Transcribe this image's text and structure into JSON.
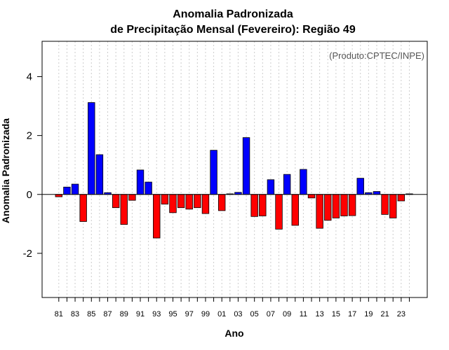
{
  "chart_data": {
    "type": "bar",
    "title_line1": "Anomalia Padronizada",
    "title_line2": "de Precipitação Mensal (Fevereiro): Região 49",
    "xlabel": "Ano",
    "ylabel": "Anomalia Padronizada",
    "credit": "(Produto:CPTEC/INPE)",
    "ylim": [
      -3.5,
      5.2
    ],
    "yticks": [
      -2,
      0,
      2,
      4
    ],
    "categories": [
      "81",
      "82",
      "83",
      "84",
      "85",
      "86",
      "87",
      "88",
      "89",
      "90",
      "91",
      "92",
      "93",
      "94",
      "95",
      "96",
      "97",
      "98",
      "99",
      "00",
      "01",
      "02",
      "03",
      "04",
      "05",
      "06",
      "07",
      "08",
      "09",
      "10",
      "11",
      "12",
      "13",
      "14",
      "15",
      "16",
      "17",
      "18",
      "19",
      "20",
      "21",
      "22",
      "23",
      "24"
    ],
    "xtick_labels": [
      "81",
      "83",
      "85",
      "87",
      "89",
      "91",
      "93",
      "95",
      "97",
      "99",
      "01",
      "03",
      "05",
      "07",
      "09",
      "11",
      "13",
      "15",
      "17",
      "19",
      "21",
      "23"
    ],
    "values": [
      -0.08,
      0.25,
      0.35,
      -0.92,
      3.12,
      1.35,
      0.06,
      -0.45,
      -1.02,
      -0.2,
      0.83,
      0.42,
      -1.48,
      -0.33,
      -0.62,
      -0.45,
      -0.5,
      -0.45,
      -0.65,
      1.5,
      -0.55,
      0.02,
      0.07,
      1.93,
      -0.75,
      -0.73,
      0.5,
      -1.18,
      0.68,
      -1.05,
      0.85,
      -0.12,
      -1.15,
      -0.88,
      -0.8,
      -0.73,
      -0.72,
      0.55,
      0.06,
      0.1,
      -0.68,
      -0.8,
      -0.22,
      0.02
    ],
    "colors": {
      "positive": "#0000ff",
      "negative": "#ff0000",
      "outline": "#000000",
      "grid": "#cccccc"
    },
    "grid": "vertical-dotted"
  }
}
